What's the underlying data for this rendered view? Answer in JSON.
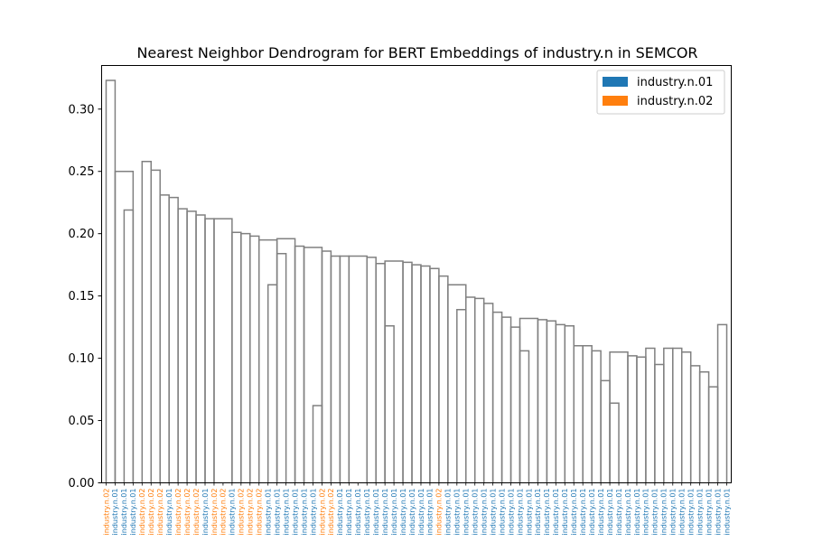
{
  "chart_data": {
    "type": "dendrogram",
    "title": "Nearest Neighbor Dendrogram for BERT Embeddings of industry.n in SEMCOR",
    "xlabel": "",
    "ylabel": "",
    "ylim": [
      0,
      0.335
    ],
    "yticks": [
      {
        "value": 0.0,
        "label": "0.00"
      },
      {
        "value": 0.05,
        "label": "0.05"
      },
      {
        "value": 0.1,
        "label": "0.10"
      },
      {
        "value": 0.15,
        "label": "0.15"
      },
      {
        "value": 0.2,
        "label": "0.20"
      },
      {
        "value": 0.25,
        "label": "0.25"
      },
      {
        "value": 0.3,
        "label": "0.30"
      }
    ],
    "link_color": "#808080",
    "legend": {
      "placement": "top-right",
      "entries": [
        {
          "label": "industry.n.01",
          "color": "#1f77b4"
        },
        {
          "label": "industry.n.02",
          "color": "#ff7f0e"
        }
      ]
    },
    "leaf_labels": [
      "industry.n.02",
      "industry.n.01",
      "industry.n.01",
      "industry.n.01",
      "industry.n.02",
      "industry.n.02",
      "industry.n.02",
      "industry.n.01",
      "industry.n.02",
      "industry.n.02",
      "industry.n.02",
      "industry.n.01",
      "industry.n.02",
      "industry.n.02",
      "industry.n.01",
      "industry.n.02",
      "industry.n.02",
      "industry.n.02",
      "industry.n.01",
      "industry.n.01",
      "industry.n.01",
      "industry.n.01",
      "industry.n.01",
      "industry.n.01",
      "industry.n.02",
      "industry.n.02",
      "industry.n.01",
      "industry.n.01",
      "industry.n.01",
      "industry.n.01",
      "industry.n.01",
      "industry.n.01",
      "industry.n.01",
      "industry.n.01",
      "industry.n.01",
      "industry.n.01",
      "industry.n.01",
      "industry.n.02",
      "industry.n.01",
      "industry.n.01",
      "industry.n.01",
      "industry.n.01",
      "industry.n.01",
      "industry.n.01",
      "industry.n.01",
      "industry.n.01",
      "industry.n.01",
      "industry.n.01",
      "industry.n.01",
      "industry.n.01",
      "industry.n.01",
      "industry.n.01",
      "industry.n.01",
      "industry.n.01",
      "industry.n.01",
      "industry.n.01",
      "industry.n.01",
      "industry.n.01",
      "industry.n.01",
      "industry.n.01",
      "industry.n.01",
      "industry.n.01",
      "industry.n.01",
      "industry.n.01",
      "industry.n.01",
      "industry.n.01",
      "industry.n.01",
      "industry.n.01",
      "industry.n.01",
      "industry.n.01"
    ],
    "merges": [
      [
        0,
        1,
        0.323
      ],
      [
        1,
        3,
        0.25
      ],
      [
        2,
        3,
        0.219
      ],
      [
        4,
        5,
        0.258
      ],
      [
        5,
        6,
        0.251
      ],
      [
        6,
        7,
        0.231
      ],
      [
        7,
        8,
        0.229
      ],
      [
        8,
        9,
        0.22
      ],
      [
        9,
        10,
        0.218
      ],
      [
        10,
        11,
        0.215
      ],
      [
        11,
        12,
        0.212
      ],
      [
        12,
        14,
        0.212
      ],
      [
        14,
        15,
        0.201
      ],
      [
        15,
        16,
        0.2
      ],
      [
        16,
        17,
        0.198
      ],
      [
        17,
        19,
        0.195
      ],
      [
        18,
        19,
        0.159
      ],
      [
        19,
        20,
        0.184
      ],
      [
        19,
        21,
        0.196
      ],
      [
        21,
        22,
        0.19
      ],
      [
        22,
        24,
        0.189
      ],
      [
        23,
        24,
        0.062
      ],
      [
        24,
        25,
        0.186
      ],
      [
        25,
        26,
        0.182
      ],
      [
        26,
        27,
        0.182
      ],
      [
        27,
        29,
        0.182
      ],
      [
        29,
        30,
        0.181
      ],
      [
        30,
        31,
        0.176
      ],
      [
        31,
        32,
        0.126
      ],
      [
        31,
        33,
        0.178
      ],
      [
        33,
        34,
        0.177
      ],
      [
        34,
        35,
        0.175
      ],
      [
        35,
        36,
        0.174
      ],
      [
        36,
        37,
        0.172
      ],
      [
        37,
        38,
        0.166
      ],
      [
        38,
        40,
        0.159
      ],
      [
        39,
        40,
        0.139
      ],
      [
        40,
        41,
        0.149
      ],
      [
        41,
        42,
        0.148
      ],
      [
        42,
        43,
        0.144
      ],
      [
        43,
        44,
        0.137
      ],
      [
        44,
        45,
        0.133
      ],
      [
        45,
        46,
        0.125
      ],
      [
        46,
        47,
        0.106
      ],
      [
        46,
        48,
        0.132
      ],
      [
        48,
        49,
        0.131
      ],
      [
        49,
        50,
        0.13
      ],
      [
        50,
        51,
        0.127
      ],
      [
        51,
        52,
        0.126
      ],
      [
        52,
        53,
        0.11
      ],
      [
        53,
        54,
        0.11
      ],
      [
        54,
        55,
        0.106
      ],
      [
        55,
        56,
        0.082
      ],
      [
        56,
        57,
        0.064
      ],
      [
        56,
        58,
        0.105
      ],
      [
        58,
        59,
        0.102
      ],
      [
        59,
        60,
        0.101
      ],
      [
        60,
        61,
        0.108
      ],
      [
        61,
        62,
        0.095
      ],
      [
        62,
        63,
        0.108
      ],
      [
        63,
        64,
        0.108
      ],
      [
        64,
        65,
        0.105
      ],
      [
        65,
        66,
        0.094
      ],
      [
        66,
        67,
        0.089
      ],
      [
        67,
        68,
        0.077
      ],
      [
        68,
        69,
        0.127
      ]
    ]
  }
}
